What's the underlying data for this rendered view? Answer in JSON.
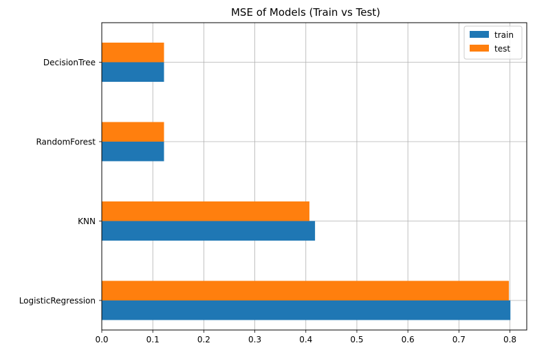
{
  "chart_data": {
    "type": "bar",
    "orientation": "horizontal",
    "title": "MSE of Models (Train vs Test)",
    "xlabel": "",
    "ylabel": "",
    "categories": [
      "LogisticRegression",
      "KNN",
      "RandomForest",
      "DecisionTree"
    ],
    "series": [
      {
        "name": "train",
        "values": [
          0.801,
          0.418,
          0.122,
          0.122
        ],
        "color": "#1f77b4"
      },
      {
        "name": "test",
        "values": [
          0.798,
          0.407,
          0.122,
          0.122
        ],
        "color": "#ff7f0e"
      }
    ],
    "xlim": [
      0,
      0.833
    ],
    "xticks": [
      0.0,
      0.1,
      0.2,
      0.3,
      0.4,
      0.5,
      0.6,
      0.7,
      0.8
    ],
    "xtick_labels": [
      "0.0",
      "0.1",
      "0.2",
      "0.3",
      "0.4",
      "0.5",
      "0.6",
      "0.7",
      "0.8"
    ],
    "grid": true,
    "legend_position": "top-right"
  }
}
